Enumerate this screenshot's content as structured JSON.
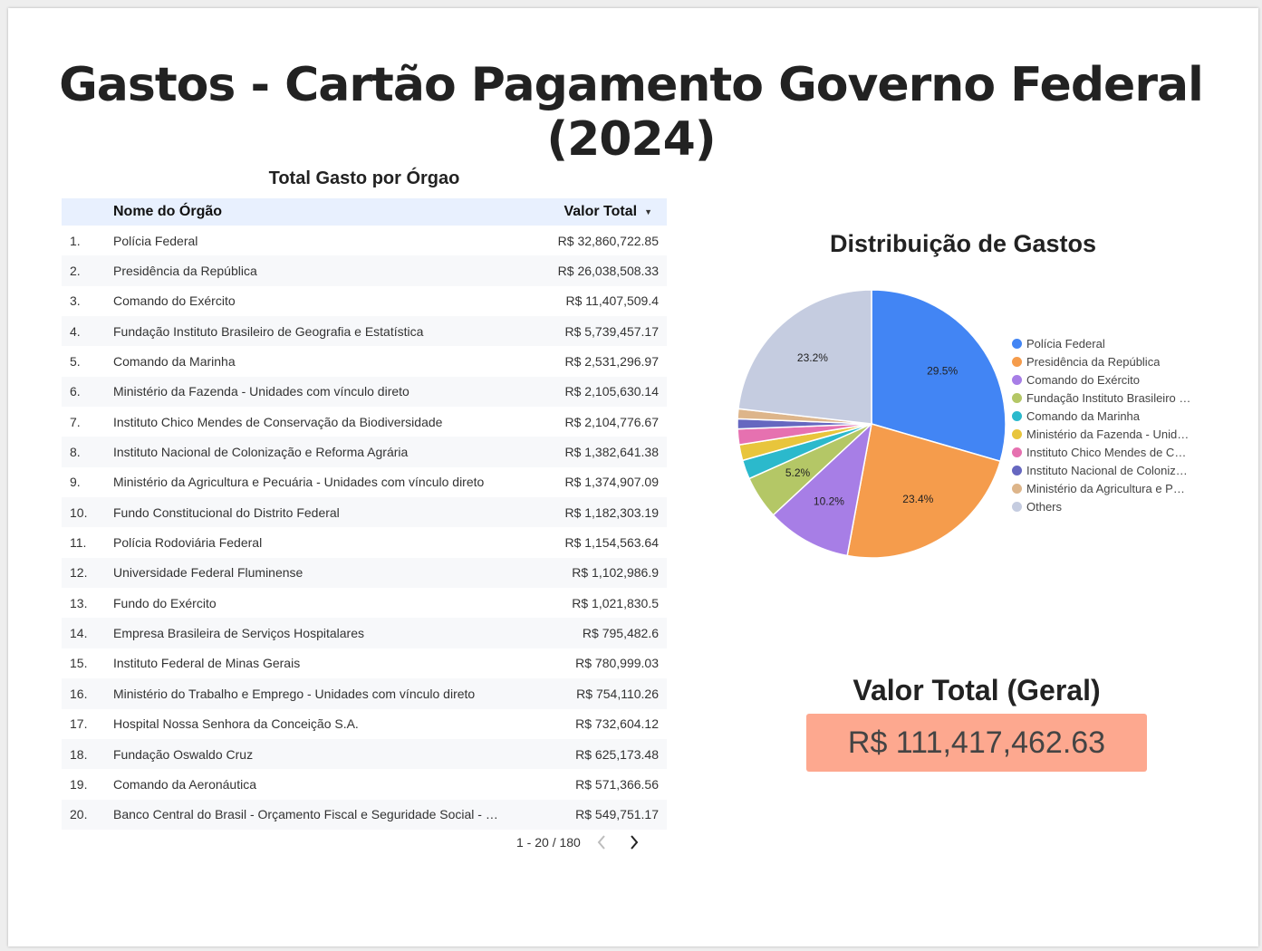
{
  "title": "Gastos - Cartão Pagamento Governo Federal (2024)",
  "table": {
    "title": "Total Gasto por Órgao",
    "col_name": "Nome do Órgão",
    "col_value": "Valor Total",
    "rows": [
      {
        "idx": "1.",
        "name": "Polícia Federal",
        "value": "R$ 32,860,722.85"
      },
      {
        "idx": "2.",
        "name": "Presidência da República",
        "value": "R$ 26,038,508.33"
      },
      {
        "idx": "3.",
        "name": "Comando do Exército",
        "value": "R$ 11,407,509.4"
      },
      {
        "idx": "4.",
        "name": "Fundação Instituto Brasileiro de Geografia e Estatística",
        "value": "R$ 5,739,457.17"
      },
      {
        "idx": "5.",
        "name": "Comando da Marinha",
        "value": "R$ 2,531,296.97"
      },
      {
        "idx": "6.",
        "name": "Ministério da Fazenda - Unidades com vínculo direto",
        "value": "R$ 2,105,630.14"
      },
      {
        "idx": "7.",
        "name": "Instituto Chico Mendes de Conservação da Biodiversidade",
        "value": "R$ 2,104,776.67"
      },
      {
        "idx": "8.",
        "name": "Instituto Nacional de Colonização e Reforma Agrária",
        "value": "R$ 1,382,641.38"
      },
      {
        "idx": "9.",
        "name": "Ministério da Agricultura e Pecuária - Unidades com vínculo direto",
        "value": "R$ 1,374,907.09"
      },
      {
        "idx": "10.",
        "name": "Fundo Constitucional do Distrito Federal",
        "value": "R$ 1,182,303.19"
      },
      {
        "idx": "11.",
        "name": "Polícia Rodoviária Federal",
        "value": "R$ 1,154,563.64"
      },
      {
        "idx": "12.",
        "name": "Universidade Federal Fluminense",
        "value": "R$ 1,102,986.9"
      },
      {
        "idx": "13.",
        "name": "Fundo do Exército",
        "value": "R$ 1,021,830.5"
      },
      {
        "idx": "14.",
        "name": "Empresa Brasileira de Serviços Hospitalares",
        "value": "R$ 795,482.6"
      },
      {
        "idx": "15.",
        "name": "Instituto Federal de Minas Gerais",
        "value": "R$ 780,999.03"
      },
      {
        "idx": "16.",
        "name": "Ministério do Trabalho e Emprego - Unidades com vínculo direto",
        "value": "R$ 754,110.26"
      },
      {
        "idx": "17.",
        "name": "Hospital Nossa Senhora da Conceição S.A.",
        "value": "R$ 732,604.12"
      },
      {
        "idx": "18.",
        "name": "Fundação Oswaldo Cruz",
        "value": "R$ 625,173.48"
      },
      {
        "idx": "19.",
        "name": "Comando da Aeronáutica",
        "value": "R$ 571,366.56"
      },
      {
        "idx": "20.",
        "name": "Banco Central do Brasil - Orçamento Fiscal e Seguridade Social - …",
        "value": "R$ 549,751.17"
      }
    ],
    "pager": "1 - 20 / 180"
  },
  "pie_title": "Distribuição de Gastos",
  "kpi": {
    "label": "Valor Total (Geral)",
    "value": "R$ 111,417,462.63"
  },
  "chart_data": [
    {
      "type": "table",
      "title": "Total Gasto por Órgao",
      "columns": [
        "Nome do Órgão",
        "Valor Total"
      ],
      "sorted_by": "Valor Total",
      "sort_order": "descending"
    },
    {
      "type": "pie",
      "title": "Distribuição de Gastos",
      "legend_position": "right",
      "slices": [
        {
          "name": "Polícia Federal",
          "label": "Polícia Federal",
          "value": 29.5,
          "pct_label": "29.5%",
          "color": "#4285f4"
        },
        {
          "name": "Presidência da República",
          "label": "Presidência da República",
          "value": 23.4,
          "pct_label": "23.4%",
          "color": "#f59c4c"
        },
        {
          "name": "Comando do Exército",
          "label": "Comando do Exército",
          "value": 10.2,
          "pct_label": "10.2%",
          "color": "#a77ee6"
        },
        {
          "name": "Fundação Instituto Brasileiro de Geografia e Estatística",
          "label": "Fundação Instituto Brasileiro …",
          "value": 5.2,
          "pct_label": "5.2%",
          "color": "#b4c766"
        },
        {
          "name": "Comando da Marinha",
          "label": "Comando da Marinha",
          "value": 2.3,
          "pct_label": "",
          "color": "#2bb9cc"
        },
        {
          "name": "Ministério da Fazenda - Unidades com vínculo direto",
          "label": "Ministério da Fazenda - Unid…",
          "value": 1.9,
          "pct_label": "",
          "color": "#e8c53c"
        },
        {
          "name": "Instituto Chico Mendes de Conservação da Biodiversidade",
          "label": "Instituto Chico Mendes de Co…",
          "value": 1.9,
          "pct_label": "",
          "color": "#e671b0"
        },
        {
          "name": "Instituto Nacional de Colonização e Reforma Agrária",
          "label": "Instituto Nacional de Coloniza…",
          "value": 1.2,
          "pct_label": "",
          "color": "#6667c0"
        },
        {
          "name": "Ministério da Agricultura e Pecuária - Unidades com vínculo direto",
          "label": "Ministério da Agricultura e Pe…",
          "value": 1.2,
          "pct_label": "",
          "color": "#ddb58a"
        },
        {
          "name": "Others",
          "label": "Others",
          "value": 23.2,
          "pct_label": "23.2%",
          "color": "#c5cce0"
        }
      ]
    },
    {
      "type": "scorecard",
      "label": "Valor Total (Geral)",
      "value": 111417462.63,
      "display": "R$ 111,417,462.63"
    }
  ]
}
